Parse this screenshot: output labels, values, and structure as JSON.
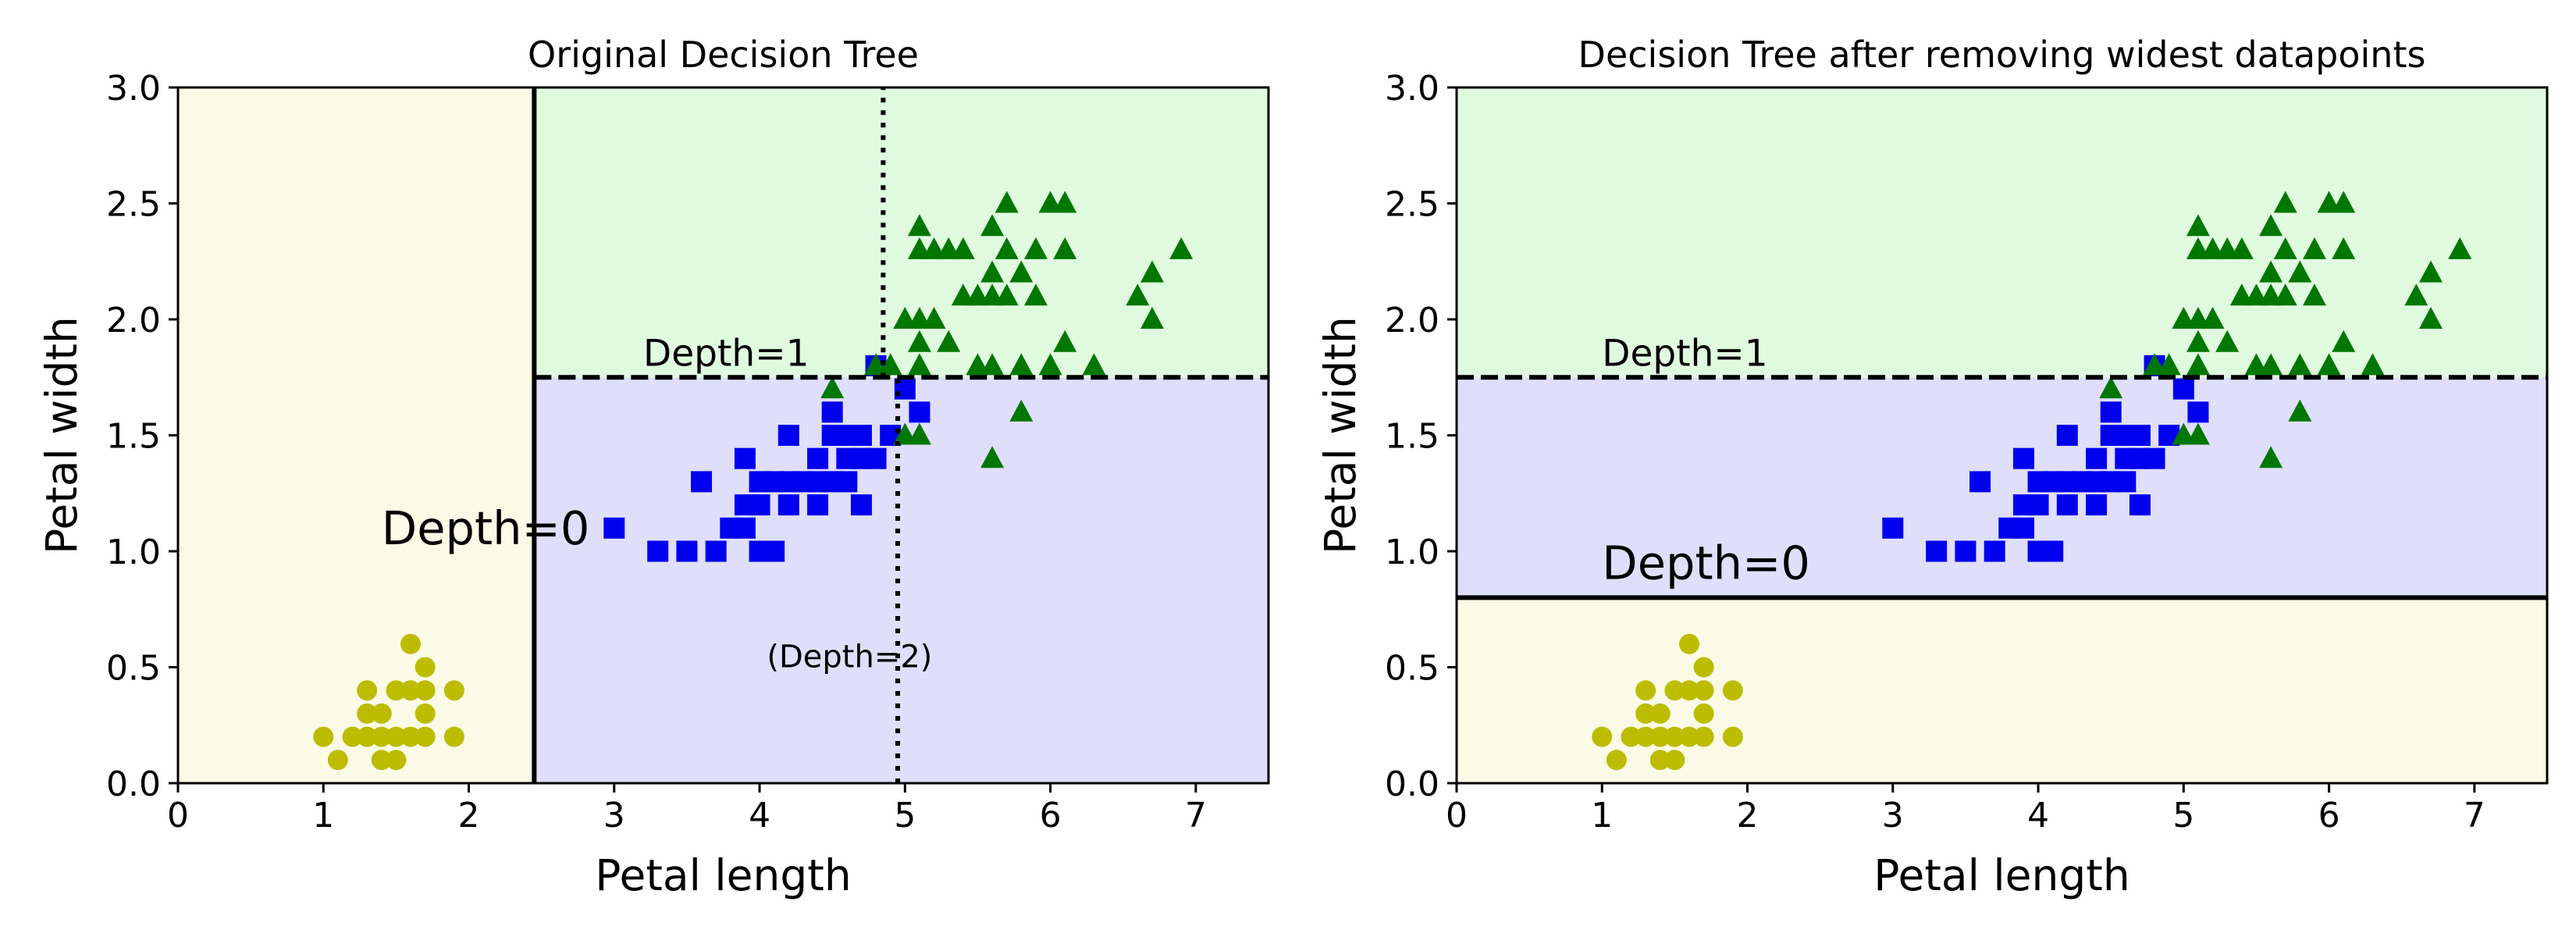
{
  "chart_data": [
    {
      "type": "scatter",
      "title": "Original Decision Tree",
      "xlabel": "Petal length",
      "ylabel": "Petal width",
      "xlim": [
        0,
        7.5
      ],
      "ylim": [
        0,
        3.0
      ],
      "xticks": [
        "0",
        "1",
        "2",
        "3",
        "4",
        "5",
        "6",
        "7"
      ],
      "yticks": [
        "0.0",
        "0.5",
        "1.0",
        "1.5",
        "2.0",
        "2.5",
        "3.0"
      ],
      "regions": [
        {
          "x": [
            0,
            2.45
          ],
          "y": [
            0,
            3.0
          ],
          "color": "#fafae6"
        },
        {
          "x": [
            2.45,
            7.5
          ],
          "y": [
            1.75,
            3.0
          ],
          "color": "#e0fae0"
        },
        {
          "x": [
            2.45,
            7.5
          ],
          "y": [
            0,
            1.75
          ],
          "color": "#dfdffc"
        }
      ],
      "boundaries": [
        {
          "style": "solid",
          "x": [
            2.45,
            2.45
          ],
          "y": [
            0,
            3.0
          ]
        },
        {
          "style": "dashed",
          "x": [
            2.45,
            7.5
          ],
          "y": [
            1.75,
            1.75
          ]
        },
        {
          "style": "dotted",
          "x": [
            4.95,
            4.95
          ],
          "y": [
            0,
            1.75
          ]
        },
        {
          "style": "dotted",
          "x": [
            4.85,
            4.85
          ],
          "y": [
            1.75,
            3.0
          ]
        }
      ],
      "annotations": [
        {
          "text": "Depth=0",
          "x": 1.4,
          "y": 1.03,
          "size": "large"
        },
        {
          "text": "Depth=1",
          "x": 3.2,
          "y": 1.8,
          "size": "medium"
        },
        {
          "text": "(Depth=2)",
          "x": 4.05,
          "y": 0.5,
          "size": "small"
        }
      ],
      "series": [
        {
          "marker": "circle",
          "color": "#bcbc00",
          "points": [
            [
              1.0,
              0.2
            ],
            [
              1.1,
              0.1
            ],
            [
              1.2,
              0.2
            ],
            [
              1.3,
              0.2
            ],
            [
              1.3,
              0.3
            ],
            [
              1.3,
              0.4
            ],
            [
              1.4,
              0.1
            ],
            [
              1.4,
              0.2
            ],
            [
              1.4,
              0.3
            ],
            [
              1.5,
              0.1
            ],
            [
              1.5,
              0.2
            ],
            [
              1.5,
              0.4
            ],
            [
              1.6,
              0.2
            ],
            [
              1.6,
              0.4
            ],
            [
              1.6,
              0.6
            ],
            [
              1.7,
              0.2
            ],
            [
              1.7,
              0.3
            ],
            [
              1.7,
              0.4
            ],
            [
              1.7,
              0.5
            ],
            [
              1.9,
              0.2
            ],
            [
              1.9,
              0.4
            ]
          ]
        },
        {
          "marker": "square",
          "color": "#0000ee",
          "points": [
            [
              3.0,
              1.1
            ],
            [
              3.3,
              1.0
            ],
            [
              3.5,
              1.0
            ],
            [
              3.6,
              1.3
            ],
            [
              3.7,
              1.0
            ],
            [
              3.8,
              1.1
            ],
            [
              3.9,
              1.1
            ],
            [
              3.9,
              1.2
            ],
            [
              3.9,
              1.4
            ],
            [
              4.0,
              1.0
            ],
            [
              4.0,
              1.2
            ],
            [
              4.0,
              1.3
            ],
            [
              4.1,
              1.0
            ],
            [
              4.1,
              1.3
            ],
            [
              4.2,
              1.2
            ],
            [
              4.2,
              1.3
            ],
            [
              4.2,
              1.5
            ],
            [
              4.3,
              1.3
            ],
            [
              4.4,
              1.2
            ],
            [
              4.4,
              1.3
            ],
            [
              4.4,
              1.4
            ],
            [
              4.5,
              1.3
            ],
            [
              4.5,
              1.5
            ],
            [
              4.5,
              1.6
            ],
            [
              4.6,
              1.3
            ],
            [
              4.6,
              1.4
            ],
            [
              4.6,
              1.5
            ],
            [
              4.7,
              1.2
            ],
            [
              4.7,
              1.4
            ],
            [
              4.7,
              1.5
            ],
            [
              4.8,
              1.4
            ],
            [
              4.8,
              1.8
            ],
            [
              4.9,
              1.5
            ],
            [
              5.0,
              1.7
            ],
            [
              5.1,
              1.6
            ]
          ]
        },
        {
          "marker": "triangle",
          "color": "#007700",
          "points": [
            [
              4.5,
              1.7
            ],
            [
              4.8,
              1.8
            ],
            [
              4.9,
              1.8
            ],
            [
              5.0,
              2.0
            ],
            [
              5.0,
              1.5
            ],
            [
              5.1,
              1.5
            ],
            [
              5.1,
              1.8
            ],
            [
              5.1,
              1.9
            ],
            [
              5.1,
              2.0
            ],
            [
              5.1,
              2.4
            ],
            [
              5.1,
              2.3
            ],
            [
              5.2,
              2.0
            ],
            [
              5.2,
              2.3
            ],
            [
              5.3,
              1.9
            ],
            [
              5.3,
              2.3
            ],
            [
              5.4,
              2.1
            ],
            [
              5.4,
              2.3
            ],
            [
              5.5,
              1.8
            ],
            [
              5.5,
              2.1
            ],
            [
              5.6,
              1.4
            ],
            [
              5.6,
              1.8
            ],
            [
              5.6,
              2.1
            ],
            [
              5.6,
              2.2
            ],
            [
              5.6,
              2.4
            ],
            [
              5.7,
              2.1
            ],
            [
              5.7,
              2.3
            ],
            [
              5.7,
              2.5
            ],
            [
              5.8,
              1.6
            ],
            [
              5.8,
              1.8
            ],
            [
              5.8,
              2.2
            ],
            [
              5.9,
              2.1
            ],
            [
              5.9,
              2.3
            ],
            [
              6.0,
              1.8
            ],
            [
              6.0,
              2.5
            ],
            [
              6.1,
              1.9
            ],
            [
              6.1,
              2.3
            ],
            [
              6.1,
              2.5
            ],
            [
              6.3,
              1.8
            ],
            [
              6.6,
              2.1
            ],
            [
              6.7,
              2.0
            ],
            [
              6.7,
              2.2
            ],
            [
              6.9,
              2.3
            ]
          ]
        }
      ]
    },
    {
      "type": "scatter",
      "title": "Decision Tree after removing widest datapoints",
      "xlabel": "Petal length",
      "ylabel": "Petal width",
      "xlim": [
        0,
        7.5
      ],
      "ylim": [
        0,
        3.0
      ],
      "xticks": [
        "0",
        "1",
        "2",
        "3",
        "4",
        "5",
        "6",
        "7"
      ],
      "yticks": [
        "0.0",
        "0.5",
        "1.0",
        "1.5",
        "2.0",
        "2.5",
        "3.0"
      ],
      "regions": [
        {
          "x": [
            0,
            7.5
          ],
          "y": [
            0,
            0.8
          ],
          "color": "#fafae6"
        },
        {
          "x": [
            0,
            7.5
          ],
          "y": [
            0.8,
            1.75
          ],
          "color": "#dfdffc"
        },
        {
          "x": [
            0,
            7.5
          ],
          "y": [
            1.75,
            3.0
          ],
          "color": "#e0fae0"
        }
      ],
      "boundaries": [
        {
          "style": "solid",
          "x": [
            0,
            7.5
          ],
          "y": [
            0.8,
            0.8
          ]
        },
        {
          "style": "dashed",
          "x": [
            0,
            7.5
          ],
          "y": [
            1.75,
            1.75
          ]
        }
      ],
      "annotations": [
        {
          "text": "Depth=0",
          "x": 1.0,
          "y": 0.88,
          "size": "large"
        },
        {
          "text": "Depth=1",
          "x": 1.0,
          "y": 1.8,
          "size": "medium"
        }
      ],
      "series": [
        {
          "marker": "circle",
          "color": "#bcbc00",
          "points": [
            [
              1.0,
              0.2
            ],
            [
              1.1,
              0.1
            ],
            [
              1.2,
              0.2
            ],
            [
              1.3,
              0.2
            ],
            [
              1.3,
              0.3
            ],
            [
              1.3,
              0.4
            ],
            [
              1.4,
              0.1
            ],
            [
              1.4,
              0.2
            ],
            [
              1.4,
              0.3
            ],
            [
              1.5,
              0.1
            ],
            [
              1.5,
              0.2
            ],
            [
              1.5,
              0.4
            ],
            [
              1.6,
              0.2
            ],
            [
              1.6,
              0.4
            ],
            [
              1.6,
              0.6
            ],
            [
              1.7,
              0.2
            ],
            [
              1.7,
              0.3
            ],
            [
              1.7,
              0.4
            ],
            [
              1.7,
              0.5
            ],
            [
              1.9,
              0.2
            ],
            [
              1.9,
              0.4
            ]
          ]
        },
        {
          "marker": "square",
          "color": "#0000ee",
          "points": [
            [
              3.0,
              1.1
            ],
            [
              3.3,
              1.0
            ],
            [
              3.5,
              1.0
            ],
            [
              3.6,
              1.3
            ],
            [
              3.7,
              1.0
            ],
            [
              3.8,
              1.1
            ],
            [
              3.9,
              1.1
            ],
            [
              3.9,
              1.2
            ],
            [
              3.9,
              1.4
            ],
            [
              4.0,
              1.0
            ],
            [
              4.0,
              1.2
            ],
            [
              4.0,
              1.3
            ],
            [
              4.1,
              1.0
            ],
            [
              4.1,
              1.3
            ],
            [
              4.2,
              1.2
            ],
            [
              4.2,
              1.3
            ],
            [
              4.2,
              1.5
            ],
            [
              4.3,
              1.3
            ],
            [
              4.4,
              1.2
            ],
            [
              4.4,
              1.3
            ],
            [
              4.4,
              1.4
            ],
            [
              4.5,
              1.3
            ],
            [
              4.5,
              1.5
            ],
            [
              4.5,
              1.6
            ],
            [
              4.6,
              1.3
            ],
            [
              4.6,
              1.4
            ],
            [
              4.6,
              1.5
            ],
            [
              4.7,
              1.2
            ],
            [
              4.7,
              1.4
            ],
            [
              4.7,
              1.5
            ],
            [
              4.8,
              1.4
            ],
            [
              4.8,
              1.8
            ],
            [
              4.9,
              1.5
            ],
            [
              5.0,
              1.7
            ],
            [
              5.1,
              1.6
            ]
          ]
        },
        {
          "marker": "triangle",
          "color": "#007700",
          "points": [
            [
              4.5,
              1.7
            ],
            [
              4.8,
              1.8
            ],
            [
              4.9,
              1.8
            ],
            [
              5.0,
              2.0
            ],
            [
              5.0,
              1.5
            ],
            [
              5.1,
              1.5
            ],
            [
              5.1,
              1.8
            ],
            [
              5.1,
              1.9
            ],
            [
              5.1,
              2.0
            ],
            [
              5.1,
              2.4
            ],
            [
              5.1,
              2.3
            ],
            [
              5.2,
              2.0
            ],
            [
              5.2,
              2.3
            ],
            [
              5.3,
              1.9
            ],
            [
              5.3,
              2.3
            ],
            [
              5.4,
              2.1
            ],
            [
              5.4,
              2.3
            ],
            [
              5.5,
              1.8
            ],
            [
              5.5,
              2.1
            ],
            [
              5.6,
              1.4
            ],
            [
              5.6,
              1.8
            ],
            [
              5.6,
              2.1
            ],
            [
              5.6,
              2.2
            ],
            [
              5.6,
              2.4
            ],
            [
              5.7,
              2.1
            ],
            [
              5.7,
              2.3
            ],
            [
              5.7,
              2.5
            ],
            [
              5.8,
              1.6
            ],
            [
              5.8,
              1.8
            ],
            [
              5.8,
              2.2
            ],
            [
              5.9,
              2.1
            ],
            [
              5.9,
              2.3
            ],
            [
              6.0,
              1.8
            ],
            [
              6.0,
              2.5
            ],
            [
              6.1,
              1.9
            ],
            [
              6.1,
              2.3
            ],
            [
              6.1,
              2.5
            ],
            [
              6.3,
              1.8
            ],
            [
              6.6,
              2.1
            ],
            [
              6.7,
              2.0
            ],
            [
              6.7,
              2.2
            ],
            [
              6.9,
              2.3
            ]
          ]
        }
      ]
    }
  ]
}
